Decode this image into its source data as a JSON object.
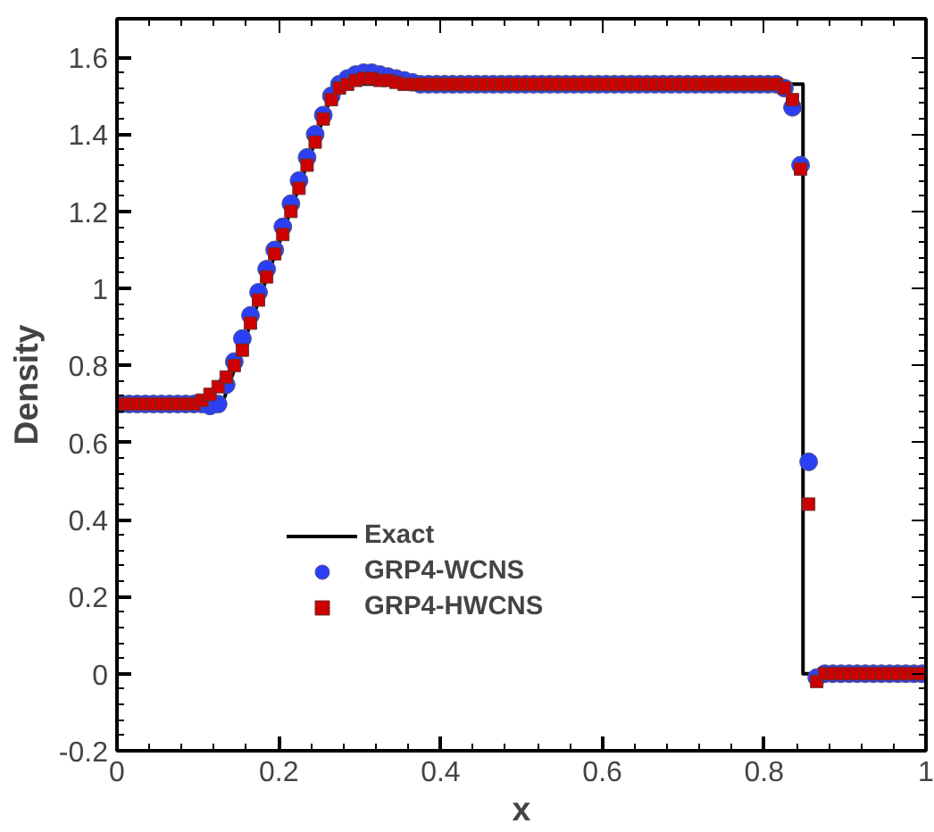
{
  "chart_data": {
    "type": "scatter",
    "xlabel": "x",
    "ylabel": "Density",
    "xlim": [
      0,
      1
    ],
    "ylim": [
      -0.2,
      1.7
    ],
    "xticks": [
      0,
      0.2,
      0.4,
      0.6,
      0.8,
      1
    ],
    "yticks": [
      -0.2,
      0,
      0.2,
      0.4,
      0.6,
      0.8,
      1,
      1.2,
      1.4,
      1.6
    ],
    "grid": false,
    "legend": "bottom left",
    "x": [
      0.005,
      0.015,
      0.025,
      0.035,
      0.045,
      0.055,
      0.065,
      0.075,
      0.085,
      0.095,
      0.105,
      0.115,
      0.125,
      0.135,
      0.145,
      0.155,
      0.165,
      0.175,
      0.185,
      0.195,
      0.205,
      0.215,
      0.225,
      0.235,
      0.245,
      0.255,
      0.265,
      0.275,
      0.285,
      0.295,
      0.305,
      0.315,
      0.325,
      0.335,
      0.345,
      0.355,
      0.365,
      0.375,
      0.385,
      0.395,
      0.405,
      0.415,
      0.425,
      0.435,
      0.445,
      0.455,
      0.465,
      0.475,
      0.485,
      0.495,
      0.505,
      0.515,
      0.525,
      0.535,
      0.545,
      0.555,
      0.565,
      0.575,
      0.585,
      0.595,
      0.605,
      0.615,
      0.625,
      0.635,
      0.645,
      0.655,
      0.665,
      0.675,
      0.685,
      0.695,
      0.705,
      0.715,
      0.725,
      0.735,
      0.745,
      0.755,
      0.765,
      0.775,
      0.785,
      0.795,
      0.805,
      0.815,
      0.825,
      0.835,
      0.845,
      0.855,
      0.865,
      0.875,
      0.885,
      0.895,
      0.905,
      0.915,
      0.925,
      0.935,
      0.945,
      0.955,
      0.965,
      0.975,
      0.985,
      0.995
    ],
    "series": [
      {
        "name": "Exact",
        "type": "line",
        "color": "#000000",
        "marker": "none",
        "line_style": "solid",
        "x": [
          0,
          0.13,
          0.27,
          0.848,
          0.848,
          1
        ],
        "values": [
          0.7,
          0.7,
          1.53,
          1.53,
          0,
          0
        ]
      },
      {
        "name": "GRP4-WCNS",
        "color": "#2b3ff5",
        "marker": "circle",
        "values": [
          0.7,
          0.7,
          0.7,
          0.7,
          0.7,
          0.7,
          0.7,
          0.7,
          0.7,
          0.7,
          0.7,
          0.695,
          0.7,
          0.75,
          0.81,
          0.87,
          0.93,
          0.99,
          1.05,
          1.1,
          1.16,
          1.22,
          1.28,
          1.34,
          1.4,
          1.45,
          1.5,
          1.53,
          1.545,
          1.555,
          1.56,
          1.56,
          1.555,
          1.55,
          1.545,
          1.54,
          1.535,
          1.53,
          1.53,
          1.53,
          1.53,
          1.53,
          1.53,
          1.53,
          1.53,
          1.53,
          1.53,
          1.53,
          1.53,
          1.53,
          1.53,
          1.53,
          1.53,
          1.53,
          1.53,
          1.53,
          1.53,
          1.53,
          1.53,
          1.53,
          1.53,
          1.53,
          1.53,
          1.53,
          1.53,
          1.53,
          1.53,
          1.53,
          1.53,
          1.53,
          1.53,
          1.53,
          1.53,
          1.53,
          1.53,
          1.53,
          1.53,
          1.53,
          1.53,
          1.53,
          1.53,
          1.53,
          1.52,
          1.47,
          1.32,
          0.55,
          -0.01,
          0,
          0,
          0,
          0,
          0,
          0,
          0,
          0,
          0,
          0,
          0,
          0,
          0
        ]
      },
      {
        "name": "GRP4-HWCNS",
        "color": "#cc0000",
        "marker": "square",
        "values": [
          0.7,
          0.7,
          0.7,
          0.7,
          0.7,
          0.7,
          0.7,
          0.7,
          0.7,
          0.7,
          0.71,
          0.725,
          0.745,
          0.77,
          0.8,
          0.84,
          0.91,
          0.97,
          1.03,
          1.09,
          1.14,
          1.2,
          1.26,
          1.32,
          1.38,
          1.44,
          1.49,
          1.52,
          1.53,
          1.54,
          1.545,
          1.545,
          1.54,
          1.54,
          1.535,
          1.53,
          1.53,
          1.53,
          1.53,
          1.53,
          1.53,
          1.53,
          1.53,
          1.53,
          1.53,
          1.53,
          1.53,
          1.53,
          1.53,
          1.53,
          1.53,
          1.53,
          1.53,
          1.53,
          1.53,
          1.53,
          1.53,
          1.53,
          1.53,
          1.53,
          1.53,
          1.53,
          1.53,
          1.53,
          1.53,
          1.53,
          1.53,
          1.53,
          1.53,
          1.53,
          1.53,
          1.53,
          1.53,
          1.53,
          1.53,
          1.53,
          1.53,
          1.53,
          1.53,
          1.53,
          1.53,
          1.53,
          1.52,
          1.49,
          1.31,
          0.44,
          -0.02,
          0,
          0,
          0,
          0,
          0,
          0,
          0,
          0,
          0,
          0,
          0,
          0,
          0
        ]
      }
    ]
  }
}
